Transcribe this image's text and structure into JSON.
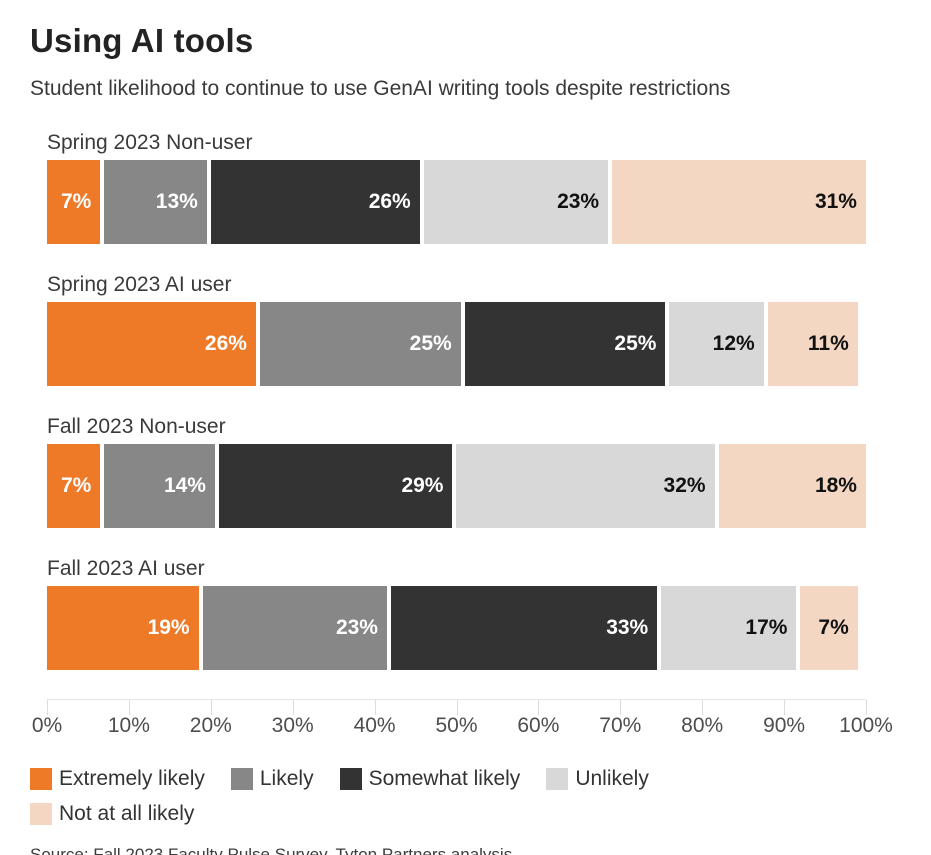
{
  "header": {
    "title": "Using AI tools",
    "subtitle": "Student likelihood to continue to use GenAI writing tools despite restrictions"
  },
  "chart_data": {
    "type": "bar",
    "variant": "horizontal-stacked-100",
    "title": "Using AI tools",
    "subtitle": "Student likelihood to continue to use GenAI writing tools despite restrictions",
    "categories": [
      "Spring 2023 Non-user",
      "Spring 2023 AI user",
      "Fall 2023 Non-user",
      "Fall 2023 AI user"
    ],
    "series": [
      {
        "name": "Extremely likely",
        "color": "#EE7A28",
        "label_color": "#ffffff",
        "values": [
          7,
          26,
          7,
          19
        ]
      },
      {
        "name": "Likely",
        "color": "#878787",
        "label_color": "#ffffff",
        "values": [
          13,
          25,
          14,
          23
        ]
      },
      {
        "name": "Somewhat likely",
        "color": "#333333",
        "label_color": "#ffffff",
        "values": [
          26,
          25,
          29,
          33
        ]
      },
      {
        "name": "Unlikely",
        "color": "#D8D8D8",
        "label_color": "#111111",
        "values": [
          23,
          12,
          32,
          17
        ]
      },
      {
        "name": "Not at all likely",
        "color": "#F3D7C3",
        "label_color": "#111111",
        "values": [
          31,
          11,
          18,
          7
        ]
      }
    ],
    "value_suffix": "%",
    "xlim": [
      0,
      100
    ],
    "x_ticks": [
      "0%",
      "10%",
      "20%",
      "30%",
      "40%",
      "50%",
      "60%",
      "70%",
      "80%",
      "90%",
      "100%"
    ],
    "grid": false,
    "legend_position": "bottom"
  },
  "footer": {
    "source": "Source: Fall 2023 Faculty Pulse Survey, Tyton Partners analysis"
  }
}
